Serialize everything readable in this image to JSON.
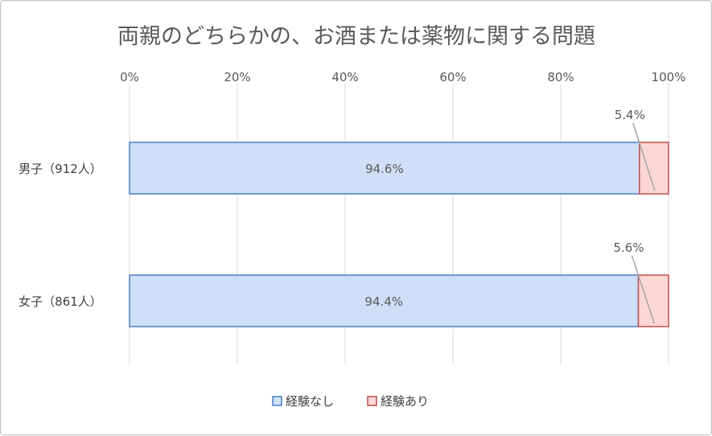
{
  "chart_data": {
    "type": "bar",
    "orientation": "horizontal",
    "stacked": "percent",
    "title": "両親のどちらかの、お酒または薬物に関する問題",
    "categories": [
      "男子（912人）",
      "女子（861人）"
    ],
    "series": [
      {
        "name": "経験なし",
        "values": [
          94.6,
          94.4
        ],
        "labels": [
          "94.6%",
          "94.4%"
        ],
        "color": "#cfdff7",
        "border": "#4a7ec6"
      },
      {
        "name": "経験あり",
        "values": [
          5.4,
          5.6
        ],
        "labels": [
          "5.4%",
          "5.6%"
        ],
        "color": "#fdd6d6",
        "border": "#c0504d"
      }
    ],
    "x_ticks": [
      "0%",
      "20%",
      "40%",
      "60%",
      "80%",
      "100%"
    ],
    "xlim": [
      0,
      100
    ],
    "axis_position": "top",
    "grid": true,
    "legend": "bottom"
  }
}
